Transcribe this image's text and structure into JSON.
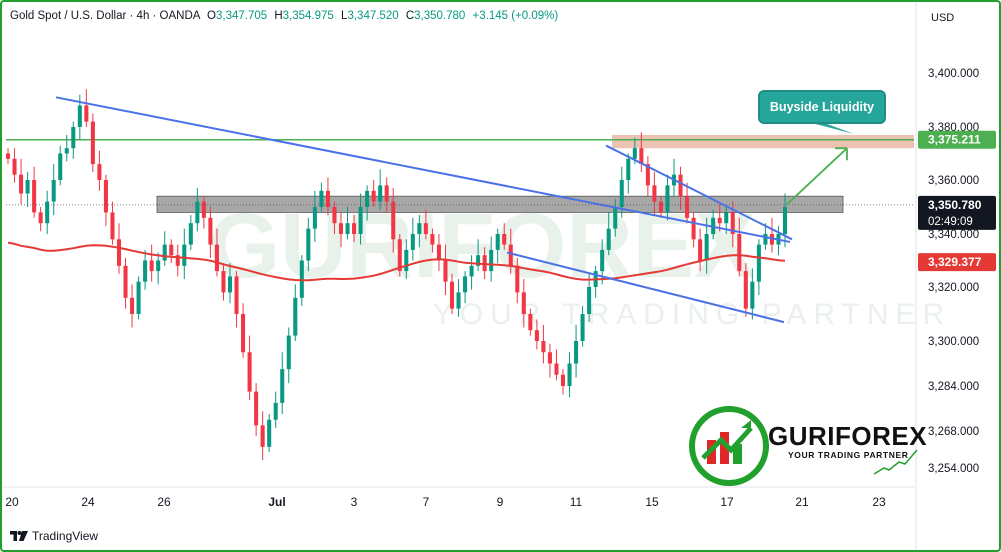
{
  "header": {
    "symbol": "Gold Spot / U.S. Dollar · 4h · OANDA",
    "o_key": "O",
    "o_val": "3,347.705",
    "h_key": "H",
    "h_val": "3,354.975",
    "l_key": "L",
    "l_val": "3,347.520",
    "c_key": "C",
    "c_val": "3,350.780",
    "change": "+3.145 (+0.09%)"
  },
  "currency": "USD",
  "brand": "TradingView",
  "callout": "Buyside Liquidity",
  "watermark": {
    "name": "GURIFOREX",
    "tagline": "YOUR TRADING PARTNER"
  },
  "colors": {
    "bull": "#089981",
    "bear": "#f23645",
    "trendline": "#4a72e8",
    "ema": "#e53935",
    "resistance_line": "#4caf50",
    "liquidity_zone": "#e9b8a5",
    "pivot_zone": "#9e9e9e",
    "frame": "#22a02e",
    "callout": "#26a69a"
  },
  "chart_data": {
    "type": "candlestick",
    "timeframe": "4h",
    "y_ticks": [
      "3,400.000",
      "3,380.000",
      "3,360.000",
      "3,340.000",
      "3,320.000",
      "3,300.000",
      "3,284.000",
      "3,268.000",
      "3,254.000"
    ],
    "x_ticks": [
      "20",
      "24",
      "26",
      "Jul",
      "3",
      "7",
      "9",
      "11",
      "15",
      "17",
      "21",
      "23"
    ],
    "price_labels": {
      "liquidity": "3,375.211",
      "last_price": "3,350.780",
      "countdown": "02:49:09",
      "moving_average": "3,329.377"
    },
    "levels": {
      "resistance": 3375.2,
      "pivot_zone": [
        3348,
        3354
      ],
      "liquidity_zone": [
        3372,
        3377
      ]
    },
    "close_series": [
      3368,
      3362,
      3355,
      3360,
      3348,
      3344,
      3352,
      3360,
      3370,
      3372,
      3380,
      3388,
      3382,
      3366,
      3360,
      3348,
      3338,
      3328,
      3316,
      3310,
      3322,
      3330,
      3326,
      3330,
      3336,
      3332,
      3328,
      3336,
      3344,
      3352,
      3346,
      3336,
      3326,
      3318,
      3324,
      3310,
      3296,
      3282,
      3270,
      3262,
      3272,
      3278,
      3290,
      3302,
      3316,
      3330,
      3342,
      3350,
      3356,
      3350,
      3344,
      3340,
      3344,
      3340,
      3350,
      3356,
      3352,
      3358,
      3352,
      3338,
      3326,
      3334,
      3340,
      3344,
      3340,
      3336,
      3330,
      3322,
      3312,
      3318,
      3324,
      3328,
      3332,
      3326,
      3334,
      3340,
      3336,
      3328,
      3318,
      3310,
      3304,
      3300,
      3296,
      3292,
      3288,
      3284,
      3292,
      3300,
      3310,
      3320,
      3326,
      3334,
      3342,
      3350,
      3360,
      3368,
      3372,
      3366,
      3358,
      3352,
      3348,
      3358,
      3362,
      3354,
      3346,
      3338,
      3330,
      3340,
      3346,
      3344,
      3348,
      3340,
      3326,
      3312,
      3322,
      3336,
      3340,
      3336,
      3340,
      3350
    ]
  }
}
